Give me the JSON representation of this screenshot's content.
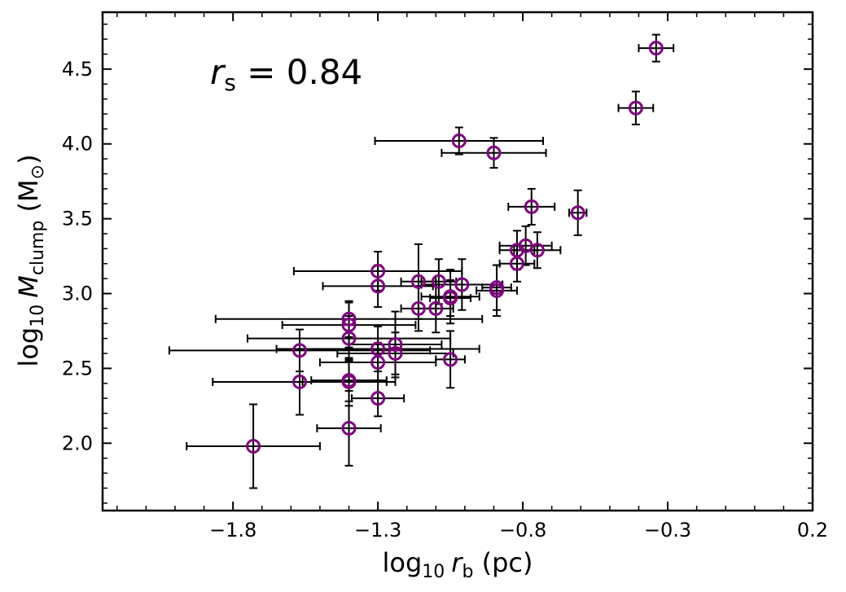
{
  "chart_data": {
    "type": "scatter",
    "title": "",
    "xlabel": {
      "prefix": "log",
      "sub": "10",
      "var": "r",
      "var_sub": "b",
      "suffix": " (pc)"
    },
    "ylabel": {
      "prefix": "log",
      "sub": "10",
      "var": "M",
      "var_sub": "clump",
      "suffix": " (M",
      "sym_sub": "⊙",
      "close": ")"
    },
    "annotation": {
      "var": "r",
      "var_sub": "s",
      "text": " = 0.84"
    },
    "xlim": [
      -2.25,
      0.2
    ],
    "ylim": [
      1.55,
      4.88
    ],
    "x_major_ticks": [
      -1.8,
      -1.3,
      -0.8,
      -0.3,
      0.2
    ],
    "x_tick_labels": [
      "−1.8",
      "−1.3",
      "−0.8",
      "−0.3",
      "0.2"
    ],
    "y_major_ticks": [
      2.0,
      2.5,
      3.0,
      3.5,
      4.0,
      4.5
    ],
    "y_tick_labels": [
      "2.0",
      "2.5",
      "3.0",
      "3.5",
      "4.0",
      "4.5"
    ],
    "grid": false,
    "marker_color": "#800080",
    "errorbar_color": "#000000",
    "points": [
      {
        "x": -0.34,
        "y": 4.64,
        "xerr": [
          0.06,
          0.06
        ],
        "yerr": [
          0.09,
          0.09
        ]
      },
      {
        "x": -0.41,
        "y": 4.24,
        "xerr": [
          0.06,
          0.06
        ],
        "yerr": [
          0.11,
          0.11
        ]
      },
      {
        "x": -1.02,
        "y": 4.02,
        "xerr": [
          0.29,
          0.29
        ],
        "yerr": [
          0.09,
          0.09
        ]
      },
      {
        "x": -0.9,
        "y": 3.94,
        "xerr": [
          0.18,
          0.18
        ],
        "yerr": [
          0.1,
          0.1
        ]
      },
      {
        "x": -0.77,
        "y": 3.58,
        "xerr": [
          0.08,
          0.08
        ],
        "yerr": [
          0.12,
          0.12
        ]
      },
      {
        "x": -0.61,
        "y": 3.54,
        "xerr": [
          0.03,
          0.03
        ],
        "yerr": [
          0.15,
          0.15
        ]
      },
      {
        "x": -0.79,
        "y": 3.32,
        "xerr": [
          0.09,
          0.09
        ],
        "yerr": [
          0.13,
          0.13
        ]
      },
      {
        "x": -0.82,
        "y": 3.29,
        "xerr": [
          0.06,
          0.06
        ],
        "yerr": [
          0.13,
          0.13
        ]
      },
      {
        "x": -0.75,
        "y": 3.29,
        "xerr": [
          0.08,
          0.08
        ],
        "yerr": [
          0.12,
          0.12
        ]
      },
      {
        "x": -0.82,
        "y": 3.2,
        "xerr": [
          0.06,
          0.06
        ],
        "yerr": [
          0.12,
          0.12
        ]
      },
      {
        "x": -1.3,
        "y": 3.15,
        "xerr": [
          0.29,
          0.29
        ],
        "yerr": [
          0.13,
          0.13
        ]
      },
      {
        "x": -1.16,
        "y": 3.08,
        "xerr": [
          0.06,
          0.06
        ],
        "yerr": [
          0.25,
          0.25
        ]
      },
      {
        "x": -1.09,
        "y": 3.08,
        "xerr": [
          0.06,
          0.06
        ],
        "yerr": [
          0.15,
          0.15
        ]
      },
      {
        "x": -1.01,
        "y": 3.06,
        "xerr": [
          0.14,
          0.14
        ],
        "yerr": [
          0.17,
          0.17
        ]
      },
      {
        "x": -1.3,
        "y": 3.05,
        "xerr": [
          0.19,
          0.19
        ],
        "yerr": [
          0.14,
          0.14
        ]
      },
      {
        "x": -0.89,
        "y": 3.04,
        "xerr": [
          0.05,
          0.05
        ],
        "yerr": [
          0.15,
          0.15
        ]
      },
      {
        "x": -0.89,
        "y": 3.02,
        "xerr": [
          0.07,
          0.07
        ],
        "yerr": [
          0.17,
          0.17
        ]
      },
      {
        "x": -1.05,
        "y": 2.98,
        "xerr": [
          0.1,
          0.1
        ],
        "yerr": [
          0.18,
          0.18
        ]
      },
      {
        "x": -1.05,
        "y": 2.97,
        "xerr": [
          0.07,
          0.07
        ],
        "yerr": [
          0.12,
          0.12
        ]
      },
      {
        "x": -1.16,
        "y": 2.9,
        "xerr": [
          0.06,
          0.06
        ],
        "yerr": [
          0.15,
          0.15
        ]
      },
      {
        "x": -1.1,
        "y": 2.9,
        "xerr": [
          0.06,
          0.06
        ],
        "yerr": [
          0.16,
          0.16
        ]
      },
      {
        "x": -1.4,
        "y": 2.83,
        "xerr": [
          0.46,
          0.46
        ],
        "yerr": [
          0.12,
          0.12
        ]
      },
      {
        "x": -1.4,
        "y": 2.79,
        "xerr": [
          0.23,
          0.23
        ],
        "yerr": [
          0.15,
          0.15
        ]
      },
      {
        "x": -1.4,
        "y": 2.7,
        "xerr": [
          0.35,
          0.35
        ],
        "yerr": [
          0.15,
          0.15
        ]
      },
      {
        "x": -1.24,
        "y": 2.66,
        "xerr": [
          0.16,
          0.16
        ],
        "yerr": [
          0.22,
          0.22
        ]
      },
      {
        "x": -1.3,
        "y": 2.63,
        "xerr": [
          0.35,
          0.35
        ],
        "yerr": [
          0.15,
          0.15
        ]
      },
      {
        "x": -1.57,
        "y": 2.62,
        "xerr": [
          0.45,
          0.45
        ],
        "yerr": [
          0.14,
          0.14
        ]
      },
      {
        "x": -1.24,
        "y": 2.6,
        "xerr": [
          0.2,
          0.2
        ],
        "yerr": [
          0.14,
          0.14
        ]
      },
      {
        "x": -1.05,
        "y": 2.56,
        "xerr": [
          0.05,
          0.05
        ],
        "yerr": [
          0.19,
          0.19
        ]
      },
      {
        "x": -1.3,
        "y": 2.54,
        "xerr": [
          0.2,
          0.2
        ],
        "yerr": [
          0.13,
          0.13
        ]
      },
      {
        "x": -1.4,
        "y": 2.42,
        "xerr": [
          0.13,
          0.13
        ],
        "yerr": [
          0.14,
          0.14
        ]
      },
      {
        "x": -1.4,
        "y": 2.41,
        "xerr": [
          0.16,
          0.16
        ],
        "yerr": [
          0.16,
          0.16
        ]
      },
      {
        "x": -1.57,
        "y": 2.41,
        "xerr": [
          0.3,
          0.3
        ],
        "yerr": [
          0.22,
          0.22
        ]
      },
      {
        "x": -1.3,
        "y": 2.3,
        "xerr": [
          0.09,
          0.09
        ],
        "yerr": [
          0.12,
          0.12
        ]
      },
      {
        "x": -1.4,
        "y": 2.1,
        "xerr": [
          0.11,
          0.11
        ],
        "yerr": [
          0.25,
          0.25
        ]
      },
      {
        "x": -1.73,
        "y": 1.98,
        "xerr": [
          0.23,
          0.23
        ],
        "yerr": [
          0.28,
          0.28
        ]
      }
    ]
  }
}
